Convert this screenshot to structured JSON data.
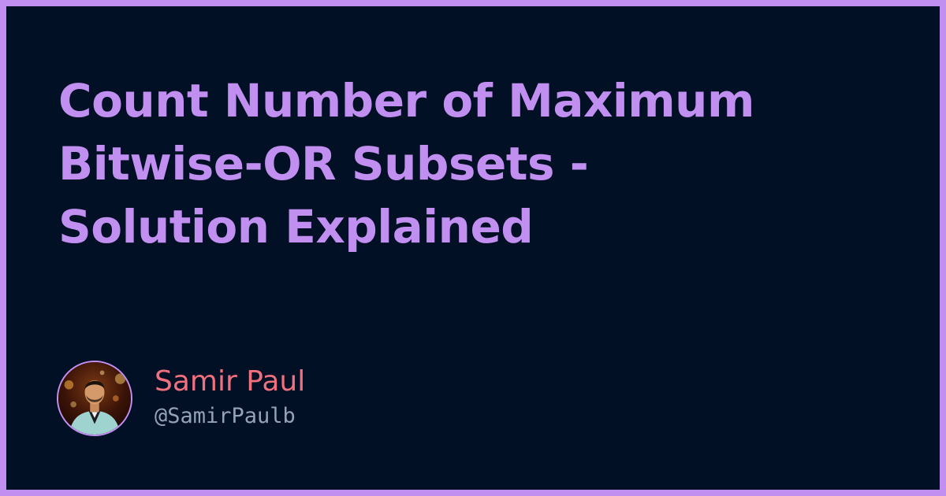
{
  "title_lines": [
    "Count Number of Maximum",
    "Bitwise-OR Subsets -",
    "Solution Explained"
  ],
  "author": {
    "name": "Samir Paul",
    "handle": "@SamirPaulb"
  },
  "colors": {
    "frame": "#c08ff0",
    "background": "#021026",
    "title": "#c08ff0",
    "author_name": "#f0707e",
    "author_handle": "#94a3b8"
  },
  "icons": {
    "avatar": "author-photo"
  }
}
